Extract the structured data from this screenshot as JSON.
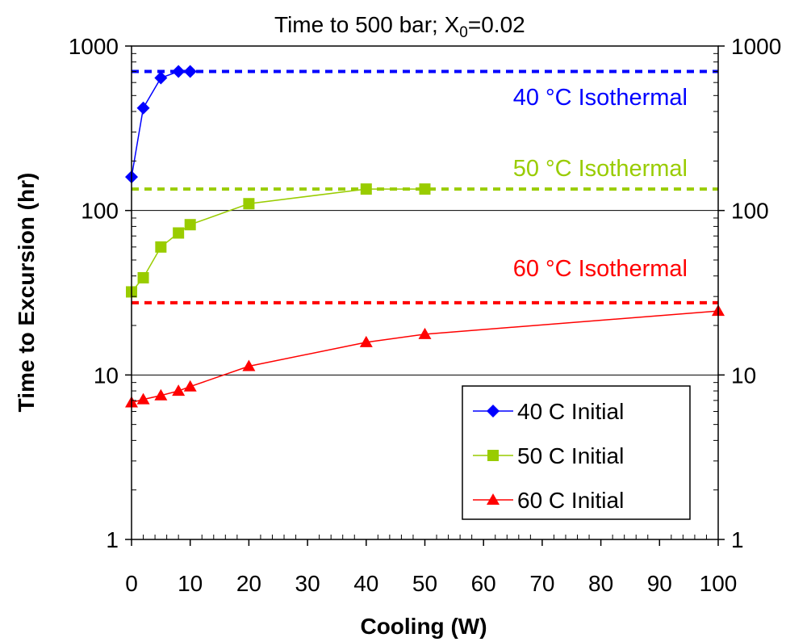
{
  "chart_data": {
    "type": "line",
    "title_main": "Time to 500 bar; X",
    "title_sub": "0",
    "title_rest": "=0.02",
    "xlabel": "Cooling (W)",
    "ylabel": "Time to Excursion (hr)",
    "x_scale": "linear",
    "y_scale": "log",
    "xlim": [
      0,
      100
    ],
    "ylim": [
      1,
      1000
    ],
    "x_ticks": [
      0,
      10,
      20,
      30,
      40,
      50,
      60,
      70,
      80,
      90,
      100
    ],
    "x_tick_labels": [
      "0",
      "10",
      "20",
      "30",
      "40",
      "50",
      "60",
      "70",
      "80",
      "90",
      "100"
    ],
    "y_ticks": [
      1,
      10,
      100,
      1000
    ],
    "y_tick_labels": [
      "1",
      "10",
      "100",
      "1000"
    ],
    "y_minor_ticks": [
      2,
      3,
      4,
      5,
      6,
      7,
      8,
      9,
      20,
      30,
      40,
      50,
      60,
      70,
      80,
      90,
      200,
      300,
      400,
      500,
      600,
      700,
      800,
      900
    ],
    "x_minor_ticks": [
      2,
      4,
      6,
      8,
      12,
      14,
      16,
      18,
      22,
      24,
      26,
      28,
      32,
      34,
      36,
      38,
      42,
      44,
      46,
      48,
      52,
      54,
      56,
      58,
      62,
      64,
      66,
      68,
      72,
      74,
      76,
      78,
      82,
      84,
      86,
      88,
      92,
      94,
      96,
      98
    ],
    "y_gridlines": [
      10,
      100
    ],
    "legend_position": "bottom-right",
    "series": [
      {
        "name": "40 C Initial",
        "color": "#0000ff",
        "marker": "diamond",
        "x": [
          0,
          2,
          5,
          8,
          10
        ],
        "y": [
          160,
          420,
          640,
          700,
          700
        ]
      },
      {
        "name": "50 C Initial",
        "color": "#99cc00",
        "marker": "square",
        "x": [
          0,
          2,
          5,
          8,
          10,
          20,
          40,
          50
        ],
        "y": [
          32,
          39,
          60,
          73,
          82,
          110,
          135,
          135
        ]
      },
      {
        "name": "60 C Initial",
        "color": "#ff0000",
        "marker": "triangle",
        "x": [
          0,
          2,
          5,
          8,
          10,
          20,
          40,
          50,
          100
        ],
        "y": [
          6.8,
          7.1,
          7.5,
          8.0,
          8.5,
          11.3,
          15.8,
          17.7,
          24.5
        ]
      }
    ],
    "reference_lines": [
      {
        "label": "40 °C Isothermal",
        "y": 700,
        "color": "#0000ff"
      },
      {
        "label": "50 °C Isothermal",
        "y": 135,
        "color": "#99cc00"
      },
      {
        "label": "60 °C Isothermal",
        "y": 27.5,
        "color": "#ff0000"
      }
    ]
  }
}
